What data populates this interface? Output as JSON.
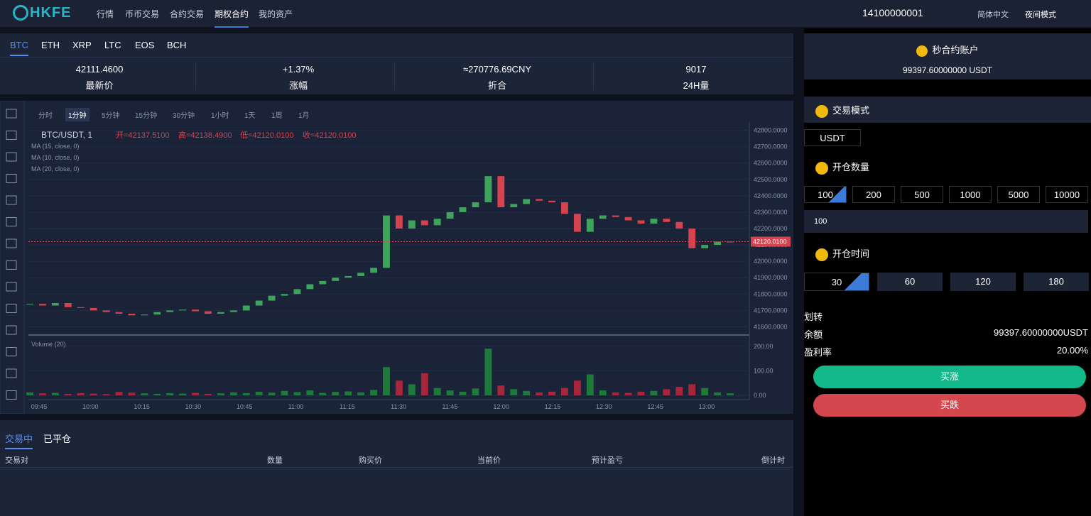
{
  "nav": {
    "logo": "HKFE",
    "items": [
      "行情",
      "币币交易",
      "合约交易",
      "期权合约",
      "我的资产"
    ],
    "active": 3,
    "account": "14100000001",
    "language": "简体中文",
    "theme": "夜间模式"
  },
  "coins": [
    "BTC",
    "ETH",
    "XRP",
    "LTC",
    "EOS",
    "BCH"
  ],
  "stats": [
    {
      "value": "42111.4600",
      "label": "最新价"
    },
    {
      "value": "+1.37%",
      "label": "涨幅"
    },
    {
      "value": "≈270776.69CNY",
      "label": "折合"
    },
    {
      "value": "9017",
      "label": "24H量"
    }
  ],
  "intervals": [
    "分时",
    "1分钟",
    "5分钟",
    "15分钟",
    "30分钟",
    "1小时",
    "1天",
    "1周",
    "1月"
  ],
  "chart_data": {
    "type": "candlestick",
    "title": "BTC/USDT, 1",
    "ohlc_labels": [
      "开=42137.5100",
      "高=42138.4900",
      "低=42120.0100",
      "收=42120.0100"
    ],
    "ma_labels": [
      "MA (15, close, 0)",
      "MA (10, close, 0)",
      "MA (20, close, 0)"
    ],
    "volume_label": "Volume (20)",
    "close": [
      41740,
      41730,
      41745,
      41720,
      41715,
      41700,
      41690,
      41680,
      41670,
      41675,
      41690,
      41700,
      41705,
      41695,
      41680,
      41690,
      41700,
      41730,
      41760,
      41790,
      41800,
      41830,
      41860,
      41880,
      41900,
      41910,
      41930,
      41960,
      42280,
      42200,
      42250,
      42220,
      42260,
      42300,
      42330,
      42360,
      42520,
      42330,
      42350,
      42380,
      42370,
      42360,
      42290,
      42180,
      42260,
      42280,
      42270,
      42250,
      42230,
      42260,
      42240,
      42200,
      42080,
      42100,
      42120,
      42120
    ],
    "volume": [
      12,
      8,
      10,
      6,
      9,
      7,
      5,
      14,
      11,
      8,
      6,
      9,
      7,
      10,
      6,
      8,
      12,
      9,
      15,
      11,
      18,
      13,
      20,
      10,
      14,
      16,
      12,
      22,
      115,
      60,
      45,
      90,
      30,
      20,
      15,
      28,
      190,
      40,
      25,
      18,
      12,
      15,
      30,
      60,
      85,
      20,
      12,
      10,
      15,
      18,
      25,
      35,
      45,
      30,
      12,
      8
    ],
    "colors": {
      "up": "#3fa45b",
      "down": "#d5434f"
    },
    "ylim": [
      41550,
      42850
    ],
    "yticks": [
      {
        "value": 41600,
        "label": "41600.0000"
      },
      {
        "value": 41700,
        "label": "41700.0000"
      },
      {
        "value": 41800,
        "label": "41800.0000"
      },
      {
        "value": 41900,
        "label": "41900.0000"
      },
      {
        "value": 42000,
        "label": "42000.0000"
      },
      {
        "value": 42100,
        "label": "42100.0000"
      },
      {
        "value": 42200,
        "label": "42200.0000"
      },
      {
        "value": 42300,
        "label": "42300.0000"
      },
      {
        "value": 42400,
        "label": "42400.0000"
      },
      {
        "value": 42500,
        "label": "42500.0000"
      },
      {
        "value": 42600,
        "label": "42600.0000"
      },
      {
        "value": 42700,
        "label": "42700.0000"
      },
      {
        "value": 42800,
        "label": "42800.0000"
      }
    ],
    "volume_ylim": [
      0,
      240
    ],
    "volume_yticks": [
      {
        "value": 0,
        "label": "0.00"
      },
      {
        "value": 100,
        "label": "100.00"
      },
      {
        "value": 200,
        "label": "200.00"
      }
    ],
    "xticks": [
      "09:45",
      "10:00",
      "10:15",
      "10:30",
      "10:45",
      "11:00",
      "11:15",
      "11:30",
      "11:45",
      "12:00",
      "12:15",
      "12:30",
      "12:45",
      "13:00"
    ],
    "last_price": {
      "value": 42120.01,
      "label": "42120.0100"
    }
  },
  "orders": {
    "tabs": [
      "交易中",
      "已平仓"
    ],
    "columns": [
      "交易对",
      "数量",
      "购买价",
      "当前价",
      "预计盈亏",
      "倒计时"
    ]
  },
  "panel": {
    "account_title": "秒合约账户",
    "account_balance": "99397.60000000 USDT",
    "mode_title": "交易模式",
    "mode": "USDT",
    "amount_title": "开仓数量",
    "amounts": [
      "100",
      "200",
      "500",
      "1000",
      "5000",
      "10000"
    ],
    "amount_input": "100",
    "time_title": "开仓时间",
    "times": [
      "30",
      "60",
      "120",
      "180"
    ],
    "transfer": "划转",
    "balance_label": "余额",
    "balance": "99397.60000000USDT",
    "rate_label": "盈利率",
    "rate": "20.00%",
    "buy_up": "买涨",
    "buy_down": "买跌"
  }
}
